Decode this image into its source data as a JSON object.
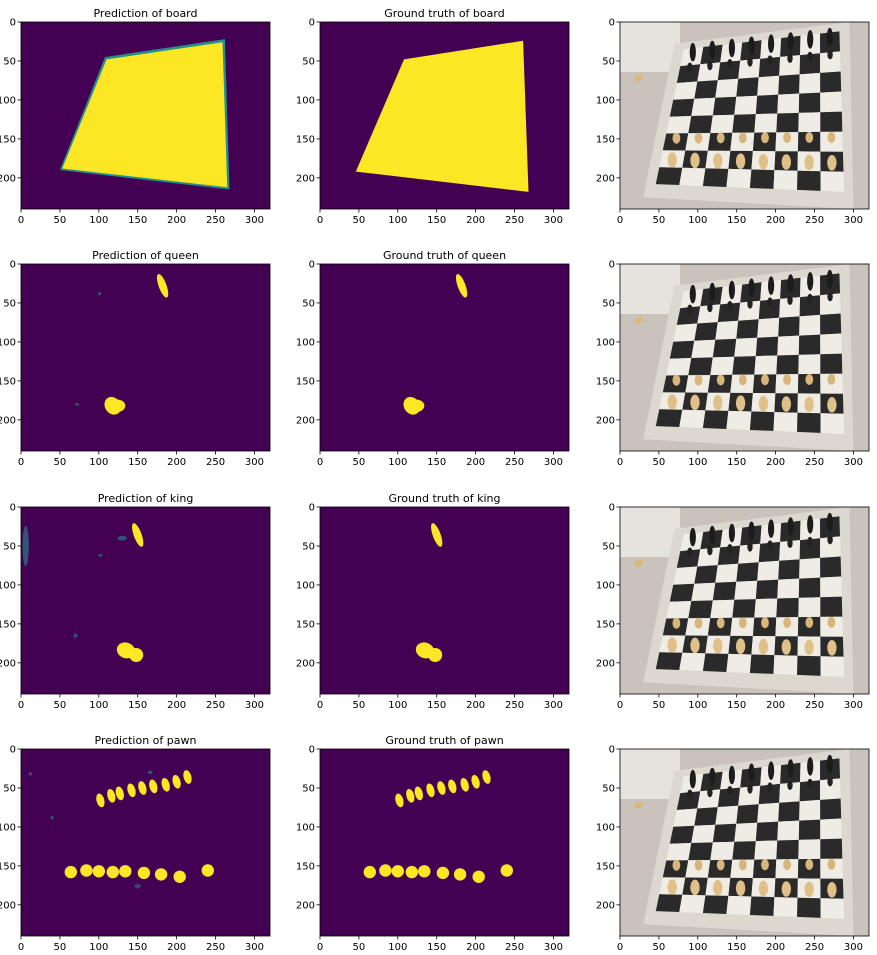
{
  "figure": {
    "colors": {
      "background": "#440154",
      "mask": "#fde725",
      "edge": "#21918c",
      "axis": "#000000"
    },
    "xticks": [
      0,
      50,
      100,
      150,
      200,
      250,
      300
    ],
    "yticks": [
      0,
      50,
      100,
      150,
      200
    ],
    "xlim": [
      0,
      320
    ],
    "ylim": [
      0,
      240
    ],
    "rows": [
      {
        "class_name": "board",
        "panels": [
          {
            "title": "Prediction of board",
            "kind": "prediction"
          },
          {
            "title": "Ground truth of board",
            "kind": "ground-truth"
          },
          {
            "title": "",
            "kind": "photo"
          }
        ]
      },
      {
        "class_name": "queen",
        "panels": [
          {
            "title": "Prediction of queen",
            "kind": "prediction"
          },
          {
            "title": "Ground truth of queen",
            "kind": "ground-truth"
          },
          {
            "title": "",
            "kind": "photo"
          }
        ]
      },
      {
        "class_name": "king",
        "panels": [
          {
            "title": "Prediction of king",
            "kind": "prediction"
          },
          {
            "title": "Ground truth of king",
            "kind": "ground-truth"
          },
          {
            "title": "",
            "kind": "photo"
          }
        ]
      },
      {
        "class_name": "pawn",
        "panels": [
          {
            "title": "Prediction of pawn",
            "kind": "prediction"
          },
          {
            "title": "Ground truth of pawn",
            "kind": "ground-truth"
          },
          {
            "title": "",
            "kind": "photo"
          }
        ]
      }
    ]
  }
}
